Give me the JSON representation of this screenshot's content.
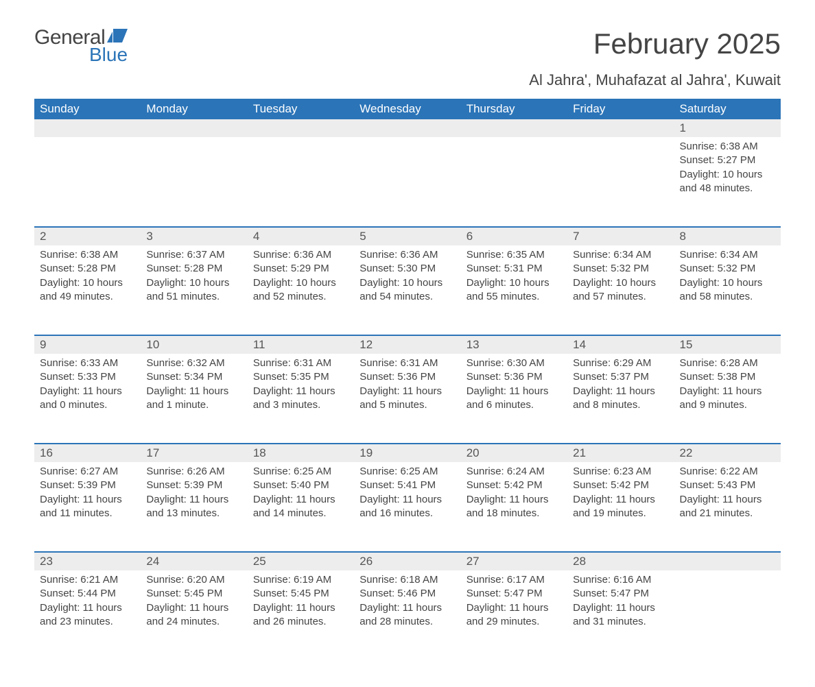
{
  "logo": {
    "word1": "General",
    "word2": "Blue",
    "flag_color": "#2b74b8"
  },
  "title": "February 2025",
  "location": "Al Jahra', Muhafazat al Jahra', Kuwait",
  "colors": {
    "header_bg": "#2b74b8",
    "header_text": "#ffffff",
    "daynum_bg": "#ededed",
    "rule": "#2b74b8",
    "body_text": "#444444"
  },
  "day_headers": [
    "Sunday",
    "Monday",
    "Tuesday",
    "Wednesday",
    "Thursday",
    "Friday",
    "Saturday"
  ],
  "weeks": [
    [
      null,
      null,
      null,
      null,
      null,
      null,
      {
        "n": "1",
        "sunrise": "6:38 AM",
        "sunset": "5:27 PM",
        "daylight": "10 hours and 48 minutes."
      }
    ],
    [
      {
        "n": "2",
        "sunrise": "6:38 AM",
        "sunset": "5:28 PM",
        "daylight": "10 hours and 49 minutes."
      },
      {
        "n": "3",
        "sunrise": "6:37 AM",
        "sunset": "5:28 PM",
        "daylight": "10 hours and 51 minutes."
      },
      {
        "n": "4",
        "sunrise": "6:36 AM",
        "sunset": "5:29 PM",
        "daylight": "10 hours and 52 minutes."
      },
      {
        "n": "5",
        "sunrise": "6:36 AM",
        "sunset": "5:30 PM",
        "daylight": "10 hours and 54 minutes."
      },
      {
        "n": "6",
        "sunrise": "6:35 AM",
        "sunset": "5:31 PM",
        "daylight": "10 hours and 55 minutes."
      },
      {
        "n": "7",
        "sunrise": "6:34 AM",
        "sunset": "5:32 PM",
        "daylight": "10 hours and 57 minutes."
      },
      {
        "n": "8",
        "sunrise": "6:34 AM",
        "sunset": "5:32 PM",
        "daylight": "10 hours and 58 minutes."
      }
    ],
    [
      {
        "n": "9",
        "sunrise": "6:33 AM",
        "sunset": "5:33 PM",
        "daylight": "11 hours and 0 minutes."
      },
      {
        "n": "10",
        "sunrise": "6:32 AM",
        "sunset": "5:34 PM",
        "daylight": "11 hours and 1 minute."
      },
      {
        "n": "11",
        "sunrise": "6:31 AM",
        "sunset": "5:35 PM",
        "daylight": "11 hours and 3 minutes."
      },
      {
        "n": "12",
        "sunrise": "6:31 AM",
        "sunset": "5:36 PM",
        "daylight": "11 hours and 5 minutes."
      },
      {
        "n": "13",
        "sunrise": "6:30 AM",
        "sunset": "5:36 PM",
        "daylight": "11 hours and 6 minutes."
      },
      {
        "n": "14",
        "sunrise": "6:29 AM",
        "sunset": "5:37 PM",
        "daylight": "11 hours and 8 minutes."
      },
      {
        "n": "15",
        "sunrise": "6:28 AM",
        "sunset": "5:38 PM",
        "daylight": "11 hours and 9 minutes."
      }
    ],
    [
      {
        "n": "16",
        "sunrise": "6:27 AM",
        "sunset": "5:39 PM",
        "daylight": "11 hours and 11 minutes."
      },
      {
        "n": "17",
        "sunrise": "6:26 AM",
        "sunset": "5:39 PM",
        "daylight": "11 hours and 13 minutes."
      },
      {
        "n": "18",
        "sunrise": "6:25 AM",
        "sunset": "5:40 PM",
        "daylight": "11 hours and 14 minutes."
      },
      {
        "n": "19",
        "sunrise": "6:25 AM",
        "sunset": "5:41 PM",
        "daylight": "11 hours and 16 minutes."
      },
      {
        "n": "20",
        "sunrise": "6:24 AM",
        "sunset": "5:42 PM",
        "daylight": "11 hours and 18 minutes."
      },
      {
        "n": "21",
        "sunrise": "6:23 AM",
        "sunset": "5:42 PM",
        "daylight": "11 hours and 19 minutes."
      },
      {
        "n": "22",
        "sunrise": "6:22 AM",
        "sunset": "5:43 PM",
        "daylight": "11 hours and 21 minutes."
      }
    ],
    [
      {
        "n": "23",
        "sunrise": "6:21 AM",
        "sunset": "5:44 PM",
        "daylight": "11 hours and 23 minutes."
      },
      {
        "n": "24",
        "sunrise": "6:20 AM",
        "sunset": "5:45 PM",
        "daylight": "11 hours and 24 minutes."
      },
      {
        "n": "25",
        "sunrise": "6:19 AM",
        "sunset": "5:45 PM",
        "daylight": "11 hours and 26 minutes."
      },
      {
        "n": "26",
        "sunrise": "6:18 AM",
        "sunset": "5:46 PM",
        "daylight": "11 hours and 28 minutes."
      },
      {
        "n": "27",
        "sunrise": "6:17 AM",
        "sunset": "5:47 PM",
        "daylight": "11 hours and 29 minutes."
      },
      {
        "n": "28",
        "sunrise": "6:16 AM",
        "sunset": "5:47 PM",
        "daylight": "11 hours and 31 minutes."
      },
      null
    ]
  ],
  "labels": {
    "sunrise": "Sunrise: ",
    "sunset": "Sunset: ",
    "daylight": "Daylight: "
  }
}
